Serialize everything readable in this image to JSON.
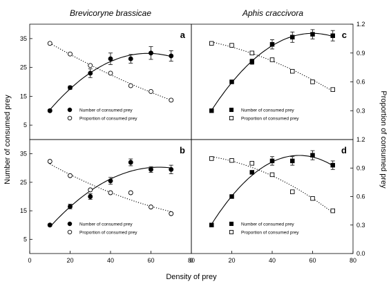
{
  "figure": {
    "titles": [
      "Brevicoryne brassicae",
      "Aphis craccivora"
    ],
    "xlabel": "Density of prey",
    "ylabel_left": "Number of consumed prey",
    "ylabel_right": "Proportion of consumed prey",
    "colors": {
      "axis": "#000000",
      "marker": "#000000",
      "curve": "#000000"
    }
  },
  "chart_data": [
    {
      "type": "scatter",
      "panel": "a",
      "title": "Brevicoryne brassicae",
      "xlim": [
        0,
        80
      ],
      "ylim_left": [
        0,
        40
      ],
      "yticks_left": [
        5,
        15,
        25,
        35
      ],
      "ylim_right": [
        0,
        1.2
      ],
      "legend": "bottom-left",
      "series": [
        {
          "name": "Number of consumed prey",
          "marker": "filled-circle",
          "axis": "left",
          "fit": "quadratic",
          "x": [
            10,
            20,
            30,
            40,
            50,
            60,
            70
          ],
          "y": [
            10,
            18,
            23,
            28,
            28,
            30,
            29
          ],
          "err": [
            0.4,
            0.6,
            1.5,
            2,
            1.5,
            2.2,
            1.8
          ]
        },
        {
          "name": "Proportion of consumed prey",
          "marker": "open-circle",
          "axis": "right",
          "fit": "dotted",
          "x": [
            10,
            20,
            30,
            40,
            50,
            60,
            70
          ],
          "y": [
            1.0,
            0.89,
            0.77,
            0.69,
            0.56,
            0.5,
            0.41
          ]
        }
      ]
    },
    {
      "type": "scatter",
      "panel": "b",
      "xlim": [
        0,
        80
      ],
      "xticks": [
        0,
        20,
        40,
        60,
        80
      ],
      "ylim_left": [
        0,
        40
      ],
      "yticks_left": [
        5,
        15,
        25,
        35
      ],
      "ylim_right": [
        0,
        1.2
      ],
      "legend": "bottom-left",
      "series": [
        {
          "name": "Number of consumed  prey",
          "marker": "filled-circle",
          "axis": "left",
          "fit": "quadratic",
          "x": [
            10,
            20,
            30,
            40,
            50,
            60,
            70
          ],
          "y": [
            10,
            16.5,
            20,
            25.5,
            32,
            29.5,
            29.5
          ],
          "err": [
            0.4,
            0.8,
            1,
            1.2,
            1.2,
            1,
            1.5
          ]
        },
        {
          "name": "Proportion of consumed prey",
          "marker": "open-circle",
          "axis": "right",
          "fit": "dotted",
          "x": [
            10,
            20,
            30,
            40,
            50,
            60,
            70
          ],
          "y": [
            0.97,
            0.82,
            0.67,
            0.64,
            0.64,
            0.49,
            0.42
          ]
        }
      ]
    },
    {
      "type": "scatter",
      "panel": "c",
      "title": "Aphis craccivora",
      "xlim": [
        0,
        80
      ],
      "ylim_left": [
        0,
        40
      ],
      "ylim_right": [
        0,
        1.2
      ],
      "yticks_right": [
        0.3,
        0.6,
        0.9,
        1.2
      ],
      "legend": "bottom-left",
      "series": [
        {
          "name": "Number of consumed prey",
          "marker": "filled-square",
          "axis": "left",
          "fit": "quadratic",
          "x": [
            10,
            20,
            30,
            40,
            50,
            60,
            70
          ],
          "y": [
            10,
            20,
            27,
            33,
            35.5,
            36.5,
            36
          ],
          "err": [
            0.3,
            0.4,
            0.9,
            1.6,
            1.8,
            1.6,
            1.8
          ]
        },
        {
          "name": "Proportion of consumed prey",
          "marker": "open-square",
          "axis": "right",
          "fit": "dotted",
          "x": [
            10,
            20,
            30,
            40,
            50,
            60,
            70
          ],
          "y": [
            1.0,
            0.98,
            0.9,
            0.83,
            0.71,
            0.6,
            0.52
          ]
        }
      ]
    },
    {
      "type": "scatter",
      "panel": "d",
      "xlim": [
        0,
        80
      ],
      "xticks": [
        0,
        20,
        40,
        60,
        80
      ],
      "ylim_left": [
        0,
        40
      ],
      "ylim_right": [
        0,
        1.2
      ],
      "yticks_right": [
        0.0,
        0.3,
        0.6,
        0.9,
        1.2
      ],
      "legend": "bottom-left",
      "series": [
        {
          "name": "Number of consumed prey",
          "marker": "filled-square",
          "axis": "left",
          "fit": "quadratic",
          "x": [
            10,
            20,
            30,
            40,
            50,
            60,
            70
          ],
          "y": [
            10,
            20,
            28.5,
            32.5,
            32.5,
            34.5,
            31
          ],
          "err": [
            0.3,
            0.4,
            0.6,
            1.5,
            1.5,
            1.6,
            1.5
          ]
        },
        {
          "name": "Proportion of consumed prey",
          "marker": "open-square",
          "axis": "right",
          "fit": "dotted",
          "x": [
            10,
            20,
            30,
            40,
            50,
            60,
            70
          ],
          "y": [
            1.0,
            0.98,
            0.95,
            0.83,
            0.65,
            0.58,
            0.45
          ]
        }
      ]
    }
  ]
}
